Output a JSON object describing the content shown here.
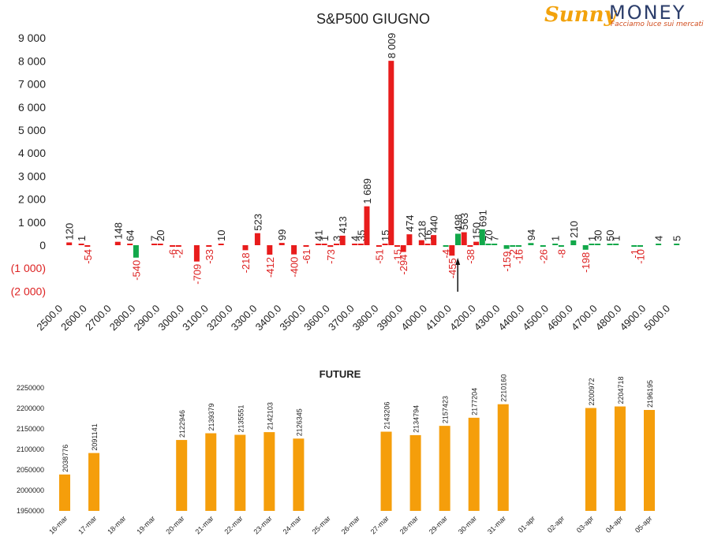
{
  "logo": {
    "brand1": "Sunny",
    "brand2": "MONEY",
    "tagline": "Facciamo luce sui mercati"
  },
  "colors": {
    "red": "#e81c1c",
    "green": "#12a84a",
    "orange": "#f59e0b",
    "text": "#222222",
    "neg_text": "#dd2222"
  },
  "chart_data": [
    {
      "type": "bar",
      "title": "S&P500 GIUGNO",
      "xlabel": "",
      "ylabel": "",
      "ylim": [
        -2000,
        9000
      ],
      "yticks": [
        {
          "v": 9000,
          "label": "9 000"
        },
        {
          "v": 8000,
          "label": "8 000"
        },
        {
          "v": 7000,
          "label": "7 000"
        },
        {
          "v": 6000,
          "label": "6 000"
        },
        {
          "v": 5000,
          "label": "5 000"
        },
        {
          "v": 4000,
          "label": "4 000"
        },
        {
          "v": 3000,
          "label": "3 000"
        },
        {
          "v": 2000,
          "label": "2 000"
        },
        {
          "v": 1000,
          "label": "1 000"
        },
        {
          "v": 0,
          "label": "0"
        },
        {
          "v": -1000,
          "label": "(1 000)"
        },
        {
          "v": -2000,
          "label": "(2 000)"
        }
      ],
      "x_tick_labels": [
        "2500.0",
        "2600.0",
        "2700.0",
        "2800.0",
        "2900.0",
        "3000.0",
        "3100.0",
        "3200.0",
        "3300.0",
        "3400.0",
        "3500.0",
        "3600.0",
        "3700.0",
        "3800.0",
        "3900.0",
        "4000.0",
        "4100.0",
        "4200.0",
        "4300.0",
        "4400.0",
        "4500.0",
        "4600.0",
        "4700.0",
        "4800.0",
        "4900.0",
        "5000.0"
      ],
      "x_range": [
        2500,
        5000
      ],
      "marker_strike": 4150,
      "bars": [
        {
          "strike": 2525,
          "value": 120,
          "label": "120",
          "color": "red"
        },
        {
          "strike": 2575,
          "value": 1,
          "label": "1",
          "color": "red"
        },
        {
          "strike": 2600,
          "value": -54,
          "label": "-54",
          "color": "red"
        },
        {
          "strike": 2725,
          "value": 148,
          "label": "148",
          "color": "red"
        },
        {
          "strike": 2775,
          "value": 64,
          "label": "64",
          "color": "red"
        },
        {
          "strike": 2800,
          "value": -540,
          "label": "-540",
          "color": "green"
        },
        {
          "strike": 2875,
          "value": 7,
          "label": "7",
          "color": "red"
        },
        {
          "strike": 2900,
          "value": 20,
          "label": "20",
          "color": "red"
        },
        {
          "strike": 2950,
          "value": -6,
          "label": "-6",
          "color": "red"
        },
        {
          "strike": 2975,
          "value": -2,
          "label": "-2",
          "color": "red"
        },
        {
          "strike": 3050,
          "value": -709,
          "label": "-709",
          "color": "red"
        },
        {
          "strike": 3100,
          "value": -33,
          "label": "-33",
          "color": "red"
        },
        {
          "strike": 3150,
          "value": 10,
          "label": "10",
          "color": "red"
        },
        {
          "strike": 3250,
          "value": -218,
          "label": "-218",
          "color": "red"
        },
        {
          "strike": 3300,
          "value": 523,
          "label": "523",
          "color": "red"
        },
        {
          "strike": 3350,
          "value": -412,
          "label": "-412",
          "color": "red"
        },
        {
          "strike": 3400,
          "value": 99,
          "label": "99",
          "color": "red"
        },
        {
          "strike": 3450,
          "value": -400,
          "label": "-400",
          "color": "red"
        },
        {
          "strike": 3500,
          "value": -61,
          "label": "-61",
          "color": "red"
        },
        {
          "strike": 3550,
          "value": 41,
          "label": "41",
          "color": "red"
        },
        {
          "strike": 3575,
          "value": 1,
          "label": "1",
          "color": "red"
        },
        {
          "strike": 3600,
          "value": -73,
          "label": "-73",
          "color": "red"
        },
        {
          "strike": 3625,
          "value": 3,
          "label": "3",
          "color": "red"
        },
        {
          "strike": 3650,
          "value": 413,
          "label": "413",
          "color": "red"
        },
        {
          "strike": 3700,
          "value": 4,
          "label": "4",
          "color": "red"
        },
        {
          "strike": 3725,
          "value": 35,
          "label": "35",
          "color": "red"
        },
        {
          "strike": 3750,
          "value": 1689,
          "label": "1 689",
          "color": "red"
        },
        {
          "strike": 3800,
          "value": -51,
          "label": "-51",
          "color": "red"
        },
        {
          "strike": 3825,
          "value": 15,
          "label": "15",
          "color": "red"
        },
        {
          "strike": 3850,
          "value": 8009,
          "label": "8 009",
          "color": "red"
        },
        {
          "strike": 3875,
          "value": -15,
          "label": "-15",
          "color": "red"
        },
        {
          "strike": 3900,
          "value": -294,
          "label": "-294",
          "color": "red"
        },
        {
          "strike": 3925,
          "value": 474,
          "label": "474",
          "color": "red"
        },
        {
          "strike": 3975,
          "value": 218,
          "label": "218",
          "color": "red"
        },
        {
          "strike": 4000,
          "value": 16,
          "label": "16",
          "color": "red"
        },
        {
          "strike": 4025,
          "value": 440,
          "label": "440",
          "color": "red"
        },
        {
          "strike": 4075,
          "value": -4,
          "label": "-4",
          "color": "green"
        },
        {
          "strike": 4100,
          "value": -455,
          "label": "-455",
          "color": "red"
        },
        {
          "strike": 4125,
          "value": 498,
          "label": "498",
          "color": "green"
        },
        {
          "strike": 4150,
          "value": 563,
          "label": "563",
          "color": "red"
        },
        {
          "strike": 4175,
          "value": -38,
          "label": "-38",
          "color": "red"
        },
        {
          "strike": 4200,
          "value": 150,
          "label": "150",
          "color": "red"
        },
        {
          "strike": 4225,
          "value": 691,
          "label": "691",
          "color": "green"
        },
        {
          "strike": 4250,
          "value": 70,
          "label": "70",
          "color": "green"
        },
        {
          "strike": 4275,
          "value": 7,
          "label": "7",
          "color": "green"
        },
        {
          "strike": 4325,
          "value": -159,
          "label": "-159",
          "color": "green"
        },
        {
          "strike": 4350,
          "value": -2,
          "label": "-2",
          "color": "green"
        },
        {
          "strike": 4375,
          "value": -16,
          "label": "-16",
          "color": "green"
        },
        {
          "strike": 4425,
          "value": 94,
          "label": "94",
          "color": "green"
        },
        {
          "strike": 4475,
          "value": -26,
          "label": "-26",
          "color": "green"
        },
        {
          "strike": 4525,
          "value": 1,
          "label": "1",
          "color": "green"
        },
        {
          "strike": 4550,
          "value": -8,
          "label": "-8",
          "color": "green"
        },
        {
          "strike": 4600,
          "value": 210,
          "label": "210",
          "color": "green"
        },
        {
          "strike": 4650,
          "value": -198,
          "label": "-198",
          "color": "green"
        },
        {
          "strike": 4675,
          "value": 1,
          "label": "1",
          "color": "green"
        },
        {
          "strike": 4700,
          "value": 30,
          "label": "30",
          "color": "green"
        },
        {
          "strike": 4750,
          "value": 50,
          "label": "50",
          "color": "green"
        },
        {
          "strike": 4775,
          "value": 1,
          "label": "1",
          "color": "green"
        },
        {
          "strike": 4850,
          "value": -1,
          "label": "-1",
          "color": "green"
        },
        {
          "strike": 4875,
          "value": -10,
          "label": "-10",
          "color": "green"
        },
        {
          "strike": 4950,
          "value": 4,
          "label": "4",
          "color": "green"
        },
        {
          "strike": 5025,
          "value": 5,
          "label": "5",
          "color": "green"
        }
      ]
    },
    {
      "type": "bar",
      "title": "FUTURE",
      "xlabel": "",
      "ylabel": "",
      "ylim": [
        1950000,
        2250000
      ],
      "yticks": [
        1950000,
        2000000,
        2050000,
        2100000,
        2150000,
        2200000,
        2250000
      ],
      "categories": [
        "16-mar",
        "17-mar",
        "18-mar",
        "19-mar",
        "20-mar",
        "21-mar",
        "22-mar",
        "23-mar",
        "24-mar",
        "25-mar",
        "26-mar",
        "27-mar",
        "28-mar",
        "29-mar",
        "30-mar",
        "31-mar",
        "01-apr",
        "02-apr",
        "03-apr",
        "04-apr",
        "05-apr"
      ],
      "values": [
        2038776,
        2091141,
        null,
        null,
        2122946,
        2139379,
        2135551,
        2142103,
        2126345,
        null,
        null,
        2143206,
        2134794,
        2157423,
        2177204,
        2210160,
        null,
        null,
        2200972,
        2204718,
        2196195
      ]
    }
  ]
}
